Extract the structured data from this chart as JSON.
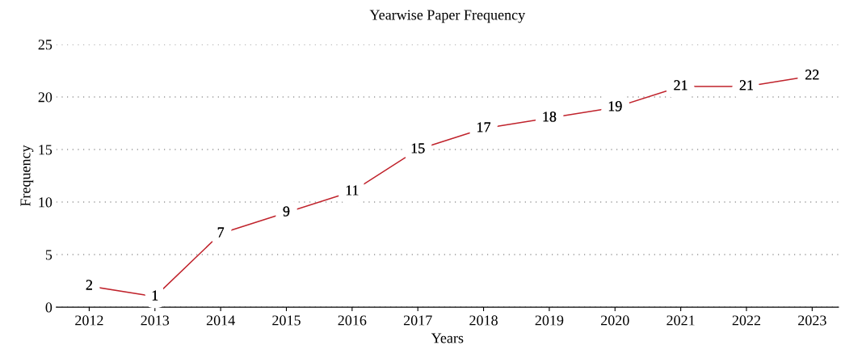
{
  "chart_data": {
    "type": "line",
    "title": "Yearwise Paper Frequency",
    "xlabel": "Years",
    "ylabel": "Frequency",
    "categories": [
      "2012",
      "2013",
      "2014",
      "2015",
      "2016",
      "2017",
      "2018",
      "2019",
      "2020",
      "2021",
      "2022",
      "2023"
    ],
    "series": [
      {
        "color": "#c0232c",
        "values": [
          2,
          1,
          7,
          9,
          11,
          15,
          17,
          18,
          19,
          21,
          21,
          22
        ]
      }
    ],
    "ylim": [
      0,
      25
    ],
    "yticks": [
      0,
      5,
      10,
      15,
      20,
      25
    ],
    "grid": "y",
    "data_labels": true,
    "line_style": "solid",
    "legend": false
  }
}
